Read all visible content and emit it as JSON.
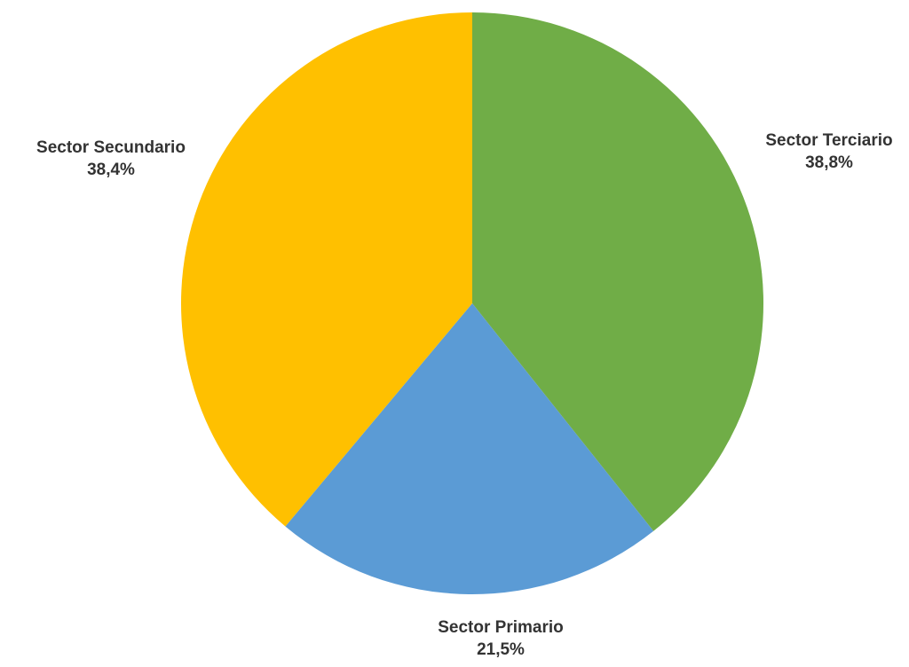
{
  "chart_data": {
    "type": "pie",
    "title": "",
    "series": [
      {
        "values": [
          {
            "label": "Sector Terciario",
            "value": 38.8,
            "display": "38,8%",
            "color": "#70AD47"
          },
          {
            "label": "Sector Primario",
            "value": 21.5,
            "display": "21,5%",
            "color": "#5B9BD5"
          },
          {
            "label": "Sector Secundario",
            "value": 38.4,
            "display": "38,4%",
            "color": "#FFC000"
          }
        ]
      }
    ],
    "legend": "none",
    "data_labels": "outside"
  }
}
